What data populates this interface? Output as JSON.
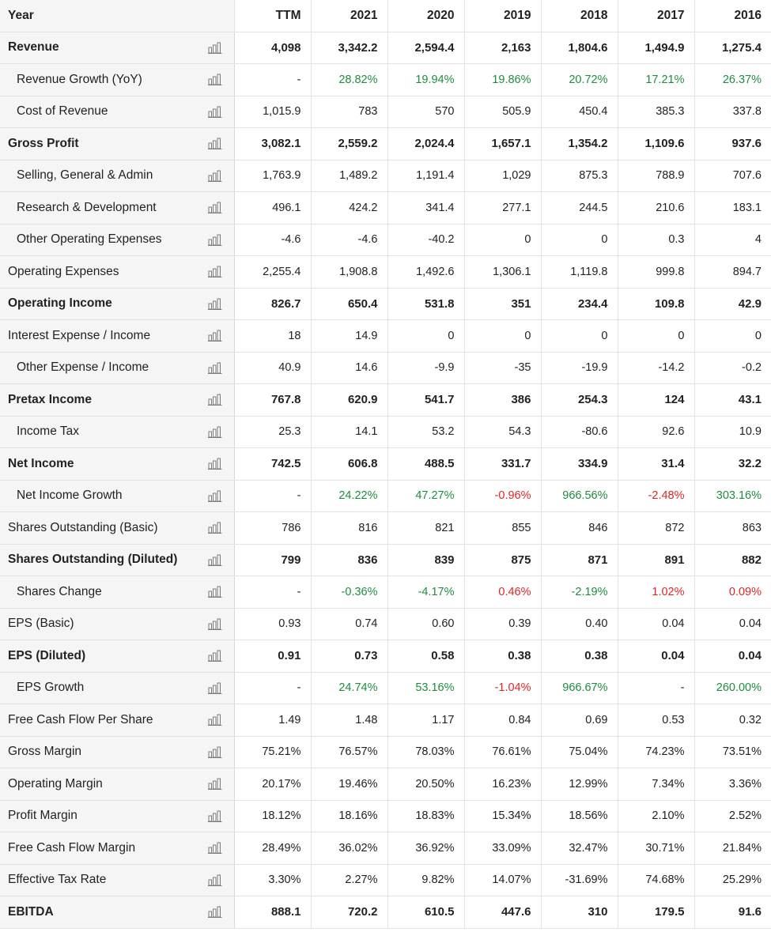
{
  "header": {
    "label": "Year",
    "columns": [
      "TTM",
      "2021",
      "2020",
      "2019",
      "2018",
      "2017",
      "2016"
    ]
  },
  "icon_name": "bar-chart-icon",
  "colors": {
    "positive": "#1f8c3f",
    "negative": "#dc2626",
    "label_bg": "#f5f5f5"
  },
  "rows": [
    {
      "label": "Revenue",
      "bold": true,
      "indent": false,
      "values": [
        "4,098",
        "3,342.2",
        "2,594.4",
        "2,163",
        "1,804.6",
        "1,494.9",
        "1,275.4"
      ]
    },
    {
      "label": "Revenue Growth (YoY)",
      "bold": false,
      "indent": true,
      "values": [
        "-",
        "28.82%",
        "19.94%",
        "19.86%",
        "20.72%",
        "17.21%",
        "26.37%"
      ],
      "tone": [
        "",
        "pos",
        "pos",
        "pos",
        "pos",
        "pos",
        "pos"
      ]
    },
    {
      "label": "Cost of Revenue",
      "bold": false,
      "indent": true,
      "values": [
        "1,015.9",
        "783",
        "570",
        "505.9",
        "450.4",
        "385.3",
        "337.8"
      ]
    },
    {
      "label": "Gross Profit",
      "bold": true,
      "indent": false,
      "values": [
        "3,082.1",
        "2,559.2",
        "2,024.4",
        "1,657.1",
        "1,354.2",
        "1,109.6",
        "937.6"
      ]
    },
    {
      "label": "Selling, General & Admin",
      "bold": false,
      "indent": true,
      "values": [
        "1,763.9",
        "1,489.2",
        "1,191.4",
        "1,029",
        "875.3",
        "788.9",
        "707.6"
      ]
    },
    {
      "label": "Research & Development",
      "bold": false,
      "indent": true,
      "values": [
        "496.1",
        "424.2",
        "341.4",
        "277.1",
        "244.5",
        "210.6",
        "183.1"
      ]
    },
    {
      "label": "Other Operating Expenses",
      "bold": false,
      "indent": true,
      "values": [
        "-4.6",
        "-4.6",
        "-40.2",
        "0",
        "0",
        "0.3",
        "4"
      ]
    },
    {
      "label": "Operating Expenses",
      "bold": false,
      "indent": false,
      "values": [
        "2,255.4",
        "1,908.8",
        "1,492.6",
        "1,306.1",
        "1,119.8",
        "999.8",
        "894.7"
      ]
    },
    {
      "label": "Operating Income",
      "bold": true,
      "indent": false,
      "values": [
        "826.7",
        "650.4",
        "531.8",
        "351",
        "234.4",
        "109.8",
        "42.9"
      ]
    },
    {
      "label": "Interest Expense / Income",
      "bold": false,
      "indent": false,
      "values": [
        "18",
        "14.9",
        "0",
        "0",
        "0",
        "0",
        "0"
      ]
    },
    {
      "label": "Other Expense / Income",
      "bold": false,
      "indent": true,
      "values": [
        "40.9",
        "14.6",
        "-9.9",
        "-35",
        "-19.9",
        "-14.2",
        "-0.2"
      ]
    },
    {
      "label": "Pretax Income",
      "bold": true,
      "indent": false,
      "values": [
        "767.8",
        "620.9",
        "541.7",
        "386",
        "254.3",
        "124",
        "43.1"
      ]
    },
    {
      "label": "Income Tax",
      "bold": false,
      "indent": true,
      "values": [
        "25.3",
        "14.1",
        "53.2",
        "54.3",
        "-80.6",
        "92.6",
        "10.9"
      ]
    },
    {
      "label": "Net Income",
      "bold": true,
      "indent": false,
      "values": [
        "742.5",
        "606.8",
        "488.5",
        "331.7",
        "334.9",
        "31.4",
        "32.2"
      ]
    },
    {
      "label": "Net Income Growth",
      "bold": false,
      "indent": true,
      "values": [
        "-",
        "24.22%",
        "47.27%",
        "-0.96%",
        "966.56%",
        "-2.48%",
        "303.16%"
      ],
      "tone": [
        "",
        "pos",
        "pos",
        "neg",
        "pos",
        "neg",
        "pos"
      ]
    },
    {
      "label": "Shares Outstanding (Basic)",
      "bold": false,
      "indent": false,
      "values": [
        "786",
        "816",
        "821",
        "855",
        "846",
        "872",
        "863"
      ]
    },
    {
      "label": "Shares Outstanding (Diluted)",
      "bold": true,
      "indent": false,
      "values": [
        "799",
        "836",
        "839",
        "875",
        "871",
        "891",
        "882"
      ]
    },
    {
      "label": "Shares Change",
      "bold": false,
      "indent": true,
      "values": [
        "-",
        "-0.36%",
        "-4.17%",
        "0.46%",
        "-2.19%",
        "1.02%",
        "0.09%"
      ],
      "tone": [
        "",
        "pos",
        "pos",
        "neg",
        "pos",
        "neg",
        "neg"
      ]
    },
    {
      "label": "EPS (Basic)",
      "bold": false,
      "indent": false,
      "values": [
        "0.93",
        "0.74",
        "0.60",
        "0.39",
        "0.40",
        "0.04",
        "0.04"
      ]
    },
    {
      "label": "EPS (Diluted)",
      "bold": true,
      "indent": false,
      "values": [
        "0.91",
        "0.73",
        "0.58",
        "0.38",
        "0.38",
        "0.04",
        "0.04"
      ]
    },
    {
      "label": "EPS Growth",
      "bold": false,
      "indent": true,
      "values": [
        "-",
        "24.74%",
        "53.16%",
        "-1.04%",
        "966.67%",
        "-",
        "260.00%"
      ],
      "tone": [
        "",
        "pos",
        "pos",
        "neg",
        "pos",
        "",
        "pos"
      ]
    },
    {
      "label": "Free Cash Flow Per Share",
      "bold": false,
      "indent": false,
      "values": [
        "1.49",
        "1.48",
        "1.17",
        "0.84",
        "0.69",
        "0.53",
        "0.32"
      ]
    },
    {
      "label": "Gross Margin",
      "bold": false,
      "indent": false,
      "values": [
        "75.21%",
        "76.57%",
        "78.03%",
        "76.61%",
        "75.04%",
        "74.23%",
        "73.51%"
      ]
    },
    {
      "label": "Operating Margin",
      "bold": false,
      "indent": false,
      "values": [
        "20.17%",
        "19.46%",
        "20.50%",
        "16.23%",
        "12.99%",
        "7.34%",
        "3.36%"
      ]
    },
    {
      "label": "Profit Margin",
      "bold": false,
      "indent": false,
      "values": [
        "18.12%",
        "18.16%",
        "18.83%",
        "15.34%",
        "18.56%",
        "2.10%",
        "2.52%"
      ]
    },
    {
      "label": "Free Cash Flow Margin",
      "bold": false,
      "indent": false,
      "values": [
        "28.49%",
        "36.02%",
        "36.92%",
        "33.09%",
        "32.47%",
        "30.71%",
        "21.84%"
      ]
    },
    {
      "label": "Effective Tax Rate",
      "bold": false,
      "indent": false,
      "values": [
        "3.30%",
        "2.27%",
        "9.82%",
        "14.07%",
        "-31.69%",
        "74.68%",
        "25.29%"
      ]
    },
    {
      "label": "EBITDA",
      "bold": true,
      "indent": false,
      "values": [
        "888.1",
        "720.2",
        "610.5",
        "447.6",
        "310",
        "179.5",
        "91.6"
      ]
    }
  ]
}
